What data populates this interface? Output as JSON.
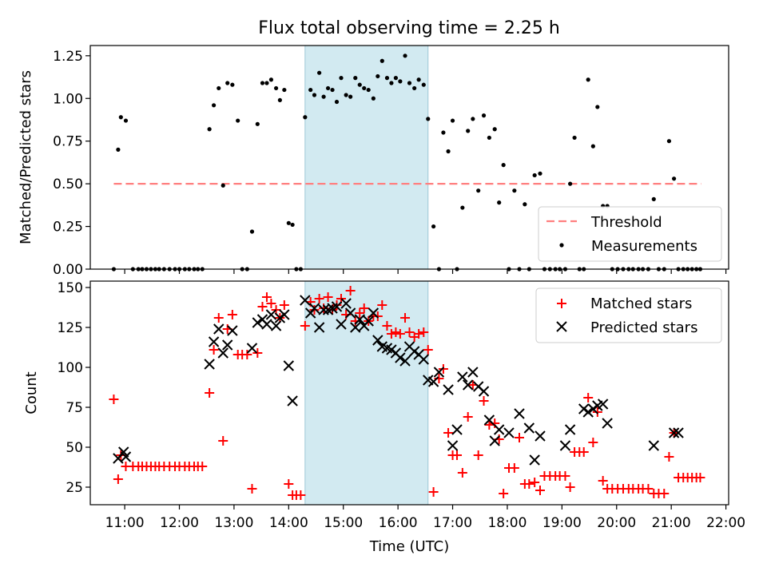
{
  "title": "Flux total observing time = 2.25 h",
  "chart_data": [
    {
      "type": "scatter",
      "panel": "top",
      "ylabel": "Matched/Predicted stars",
      "xlabel": "",
      "xlim": [
        10.37,
        22.05
      ],
      "ylim": [
        0,
        1.31
      ],
      "yticks": [
        0.0,
        0.25,
        0.5,
        0.75,
        1.0,
        1.25
      ],
      "ytick_labels": [
        "0.00",
        "0.25",
        "0.50",
        "0.75",
        "1.00",
        "1.25"
      ],
      "shaded_interval_utc": [
        14.3,
        16.55
      ],
      "threshold": {
        "name": "Threshold",
        "y": 0.5,
        "x_range": [
          10.8,
          21.55
        ],
        "color": "#ff7f7f",
        "style": "dashed"
      },
      "legend": {
        "position": "lower right",
        "entries": [
          "Threshold",
          "Measurements"
        ]
      },
      "series": [
        {
          "name": "Measurements",
          "marker": "dot",
          "color": "#000000",
          "x": [
            10.8,
            10.88,
            10.93,
            11.02,
            11.15,
            11.25,
            11.32,
            11.4,
            11.48,
            11.56,
            11.63,
            11.72,
            11.82,
            11.92,
            12.0,
            12.1,
            12.18,
            12.27,
            12.34,
            12.42,
            12.55,
            12.63,
            12.72,
            12.8,
            12.88,
            12.97,
            13.07,
            13.15,
            13.24,
            13.33,
            13.43,
            13.52,
            13.6,
            13.68,
            13.77,
            13.84,
            13.92,
            14.0,
            14.07,
            14.14,
            14.22,
            14.3,
            14.4,
            14.47,
            14.56,
            14.64,
            14.72,
            14.8,
            14.88,
            14.96,
            15.05,
            15.13,
            15.22,
            15.3,
            15.38,
            15.46,
            15.55,
            15.63,
            15.71,
            15.8,
            15.88,
            15.96,
            16.04,
            16.13,
            16.21,
            16.3,
            16.38,
            16.47,
            16.55,
            16.65,
            16.75,
            16.83,
            16.92,
            17.0,
            17.08,
            17.18,
            17.28,
            17.37,
            17.47,
            17.57,
            17.67,
            17.77,
            17.85,
            17.93,
            18.03,
            18.13,
            18.22,
            18.32,
            18.4,
            18.5,
            18.6,
            18.68,
            18.78,
            18.88,
            18.96,
            19.06,
            19.15,
            19.23,
            19.32,
            19.4,
            19.48,
            19.57,
            19.65,
            19.75,
            19.83,
            19.92,
            20.02,
            20.12,
            20.22,
            20.3,
            20.4,
            20.48,
            20.58,
            20.68,
            20.77,
            20.87,
            20.96,
            21.05,
            21.13,
            21.22,
            21.3,
            21.38,
            21.46,
            21.53
          ],
          "y": [
            0.0,
            0.7,
            0.89,
            0.87,
            0.0,
            0.0,
            0.0,
            0.0,
            0.0,
            0.0,
            0.0,
            0.0,
            0.0,
            0.0,
            0.0,
            0.0,
            0.0,
            0.0,
            0.0,
            0.0,
            0.82,
            0.96,
            1.06,
            0.49,
            1.09,
            1.08,
            0.87,
            0.0,
            0.0,
            0.22,
            0.85,
            1.09,
            1.09,
            1.11,
            1.06,
            0.99,
            1.05,
            0.27,
            0.26,
            0.0,
            0.0,
            0.89,
            1.05,
            1.02,
            1.15,
            1.01,
            1.06,
            1.05,
            0.98,
            1.12,
            1.02,
            1.01,
            1.12,
            1.08,
            1.06,
            1.05,
            1.0,
            1.13,
            1.22,
            1.12,
            1.09,
            1.12,
            1.1,
            1.25,
            1.09,
            1.06,
            1.11,
            1.08,
            0.88,
            0.25,
            0.0,
            0.8,
            0.69,
            0.87,
            0.0,
            0.36,
            0.81,
            0.88,
            0.46,
            0.9,
            0.77,
            0.82,
            0.39,
            0.61,
            0.0,
            0.46,
            0.0,
            0.38,
            0.0,
            0.55,
            0.56,
            0.0,
            0.0,
            0.0,
            0.0,
            0.0,
            0.5,
            0.77,
            0.0,
            0.0,
            1.11,
            0.72,
            0.95,
            0.37,
            0.37,
            0.0,
            0.0,
            0.0,
            0.0,
            0.0,
            0.0,
            0.0,
            0.0,
            0.41,
            0.0,
            0.0,
            0.75,
            0.53,
            0.0,
            0.0,
            0.0,
            0.0,
            0.0,
            0.0
          ]
        }
      ]
    },
    {
      "type": "scatter",
      "panel": "bottom",
      "ylabel": "Count",
      "xlabel": "Time (UTC)",
      "xlim": [
        10.37,
        22.05
      ],
      "ylim": [
        14,
        154
      ],
      "yticks": [
        25,
        50,
        75,
        100,
        125,
        150
      ],
      "ytick_labels": [
        "25",
        "50",
        "75",
        "100",
        "125",
        "150"
      ],
      "xticks": [
        11,
        12,
        13,
        14,
        15,
        16,
        17,
        18,
        19,
        20,
        21,
        22
      ],
      "xtick_labels": [
        "11:00",
        "12:00",
        "13:00",
        "14:00",
        "15:00",
        "16:00",
        "17:00",
        "18:00",
        "19:00",
        "20:00",
        "21:00",
        "22:00"
      ],
      "shaded_interval_utc": [
        14.3,
        16.55
      ],
      "legend": {
        "position": "upper right",
        "entries": [
          "Matched stars",
          "Predicted stars"
        ]
      },
      "series": [
        {
          "name": "Matched stars",
          "marker": "plus",
          "color": "#ff0000",
          "x": [
            10.8,
            10.88,
            10.93,
            11.02,
            11.15,
            11.25,
            11.32,
            11.4,
            11.48,
            11.56,
            11.63,
            11.72,
            11.82,
            11.92,
            12.0,
            12.1,
            12.18,
            12.27,
            12.34,
            12.42,
            12.55,
            12.63,
            12.72,
            12.8,
            12.88,
            12.97,
            13.07,
            13.15,
            13.24,
            13.33,
            13.43,
            13.52,
            13.6,
            13.68,
            13.77,
            13.84,
            13.92,
            14.0,
            14.07,
            14.14,
            14.22,
            14.3,
            14.4,
            14.47,
            14.56,
            14.64,
            14.72,
            14.8,
            14.88,
            14.96,
            15.05,
            15.13,
            15.22,
            15.3,
            15.38,
            15.46,
            15.55,
            15.63,
            15.71,
            15.8,
            15.88,
            15.96,
            16.04,
            16.13,
            16.21,
            16.3,
            16.38,
            16.47,
            16.55,
            16.65,
            16.75,
            16.83,
            16.92,
            17.0,
            17.08,
            17.18,
            17.28,
            17.37,
            17.47,
            17.57,
            17.67,
            17.77,
            17.85,
            17.93,
            18.03,
            18.13,
            18.22,
            18.32,
            18.4,
            18.5,
            18.6,
            18.68,
            18.78,
            18.88,
            18.96,
            19.06,
            19.15,
            19.23,
            19.32,
            19.4,
            19.48,
            19.57,
            19.65,
            19.75,
            19.83,
            19.92,
            20.02,
            20.12,
            20.22,
            20.3,
            20.4,
            20.48,
            20.58,
            20.68,
            20.77,
            20.87,
            20.96,
            21.05,
            21.13,
            21.22,
            21.3,
            21.38,
            21.46,
            21.53
          ],
          "y": [
            80,
            30,
            45,
            38,
            38,
            38,
            38,
            38,
            38,
            38,
            38,
            38,
            38,
            38,
            38,
            38,
            38,
            38,
            38,
            38,
            84,
            111,
            131,
            54,
            124,
            133,
            108,
            108,
            108,
            24,
            109,
            138,
            144,
            140,
            136,
            131,
            139,
            27,
            20,
            20,
            20,
            126,
            141,
            136,
            143,
            137,
            144,
            136,
            139,
            143,
            133,
            148,
            129,
            134,
            137,
            129,
            132,
            132,
            139,
            126,
            121,
            122,
            121,
            131,
            122,
            119,
            121,
            122,
            111,
            22,
            93,
            99,
            59,
            45,
            45,
            34,
            69,
            89,
            45,
            79,
            64,
            65,
            55,
            21,
            37,
            37,
            56,
            27,
            27,
            28,
            23,
            32,
            32,
            32,
            32,
            32,
            25,
            47,
            47,
            47,
            81,
            53,
            72,
            29,
            24,
            24,
            24,
            24,
            24,
            24,
            24,
            24,
            24,
            21,
            21,
            21,
            44,
            59,
            31,
            31,
            31,
            31,
            31,
            31
          ]
        },
        {
          "name": "Predicted stars",
          "marker": "x",
          "color": "#000000",
          "x": [
            10.88,
            10.98,
            11.02,
            12.55,
            12.63,
            12.72,
            12.8,
            12.88,
            12.97,
            13.33,
            13.43,
            13.52,
            13.6,
            13.68,
            13.77,
            13.84,
            13.92,
            14.0,
            14.07,
            14.3,
            14.4,
            14.47,
            14.56,
            14.64,
            14.72,
            14.8,
            14.88,
            14.96,
            15.05,
            15.13,
            15.22,
            15.3,
            15.38,
            15.46,
            15.55,
            15.63,
            15.71,
            15.8,
            15.88,
            15.96,
            16.04,
            16.13,
            16.21,
            16.3,
            16.38,
            16.47,
            16.55,
            16.65,
            16.75,
            16.92,
            17.0,
            17.08,
            17.18,
            17.28,
            17.37,
            17.47,
            17.57,
            17.67,
            17.77,
            17.85,
            18.03,
            18.22,
            18.4,
            18.5,
            18.6,
            19.06,
            19.15,
            19.4,
            19.48,
            19.57,
            19.65,
            19.75,
            19.83,
            20.68,
            21.05,
            21.13
          ],
          "y": [
            43,
            47,
            44,
            102,
            116,
            124,
            109,
            114,
            123,
            112,
            128,
            130,
            127,
            133,
            126,
            131,
            133,
            101,
            79,
            142,
            134,
            137,
            125,
            136,
            136,
            137,
            138,
            127,
            140,
            134,
            125,
            130,
            126,
            129,
            134,
            117,
            113,
            112,
            111,
            109,
            106,
            104,
            113,
            110,
            108,
            105,
            92,
            91,
            97,
            86,
            51,
            61,
            94,
            89,
            97,
            88,
            85,
            67,
            54,
            61,
            59,
            71,
            62,
            42,
            57,
            51,
            61,
            74,
            72,
            74,
            76,
            77,
            65,
            51,
            59,
            59
          ]
        }
      ]
    }
  ]
}
